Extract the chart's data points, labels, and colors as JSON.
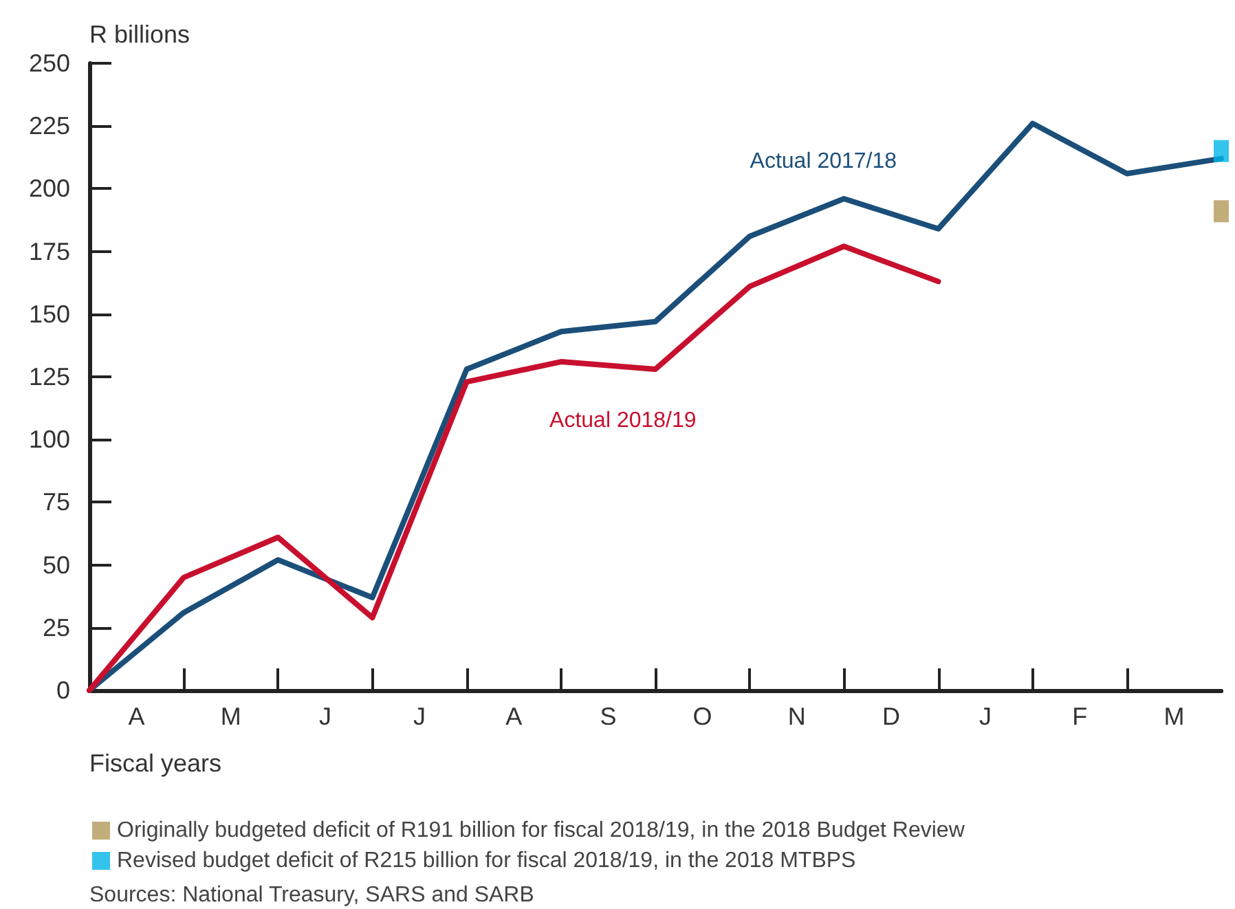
{
  "chart_data": {
    "type": "line",
    "ylabel": "R billions",
    "xlabel": "Fiscal years",
    "categories": [
      null,
      "A",
      null,
      "M",
      null,
      "J",
      null,
      "J",
      null,
      "A",
      null,
      "S",
      null,
      "O",
      null,
      "N",
      null,
      "D",
      null,
      "J",
      null,
      "F",
      null,
      "M",
      null
    ],
    "ylim": [
      0,
      250
    ],
    "yticks": [
      0,
      25,
      50,
      75,
      100,
      125,
      150,
      175,
      200,
      225,
      250
    ],
    "series": [
      {
        "name": "Actual 2017/18",
        "color": "#1b4f7a",
        "values": [
          0,
          null,
          31,
          null,
          52,
          null,
          37,
          null,
          128,
          null,
          143,
          null,
          147,
          null,
          181,
          null,
          196,
          null,
          184,
          null,
          226,
          null,
          206,
          null,
          212
        ]
      },
      {
        "name": "Actual 2018/19",
        "color": "#c8102e",
        "values": [
          0,
          null,
          45,
          null,
          61,
          null,
          29,
          null,
          123,
          null,
          131,
          null,
          128,
          null,
          161,
          null,
          177,
          null,
          163,
          null,
          null,
          null,
          null,
          null,
          null
        ]
      },
      {
        "name": "Originally budgeted deficit of R191 billion for fiscal 2018/19, in the 2018 Budget Review",
        "type": "scatter",
        "marker": "square",
        "color": "#b39a5a",
        "values": [
          null,
          null,
          null,
          null,
          null,
          null,
          null,
          null,
          null,
          null,
          null,
          null,
          null,
          null,
          null,
          null,
          null,
          null,
          null,
          null,
          null,
          null,
          null,
          null,
          191
        ]
      },
      {
        "name": "Revised budget deficit of R215 billion for fiscal 2018/19, in the 2018 MTBPS",
        "type": "scatter",
        "marker": "square",
        "color": "#00b5e8",
        "values": [
          null,
          null,
          null,
          null,
          null,
          null,
          null,
          null,
          null,
          null,
          null,
          null,
          null,
          null,
          null,
          null,
          null,
          null,
          null,
          null,
          null,
          null,
          null,
          null,
          215
        ]
      }
    ],
    "marker": "none",
    "line_style": "solid",
    "grid": false,
    "legend": "bottom",
    "annotations": [
      "Sources: National Treasury, SARS and SARB"
    ]
  }
}
